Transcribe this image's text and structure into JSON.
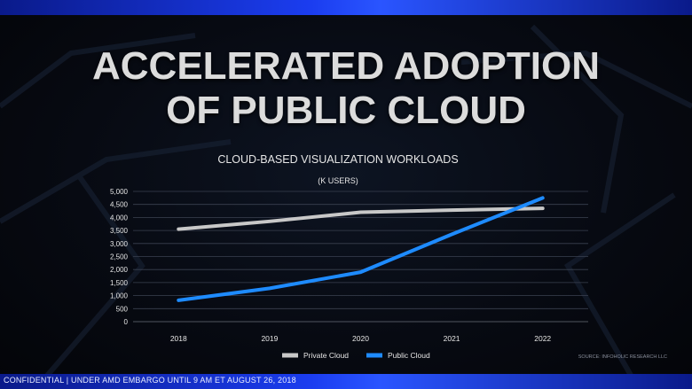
{
  "slide": {
    "title_line1": "ACCELERATED ADOPTION",
    "title_line2": "OF PUBLIC CLOUD",
    "footer": "CONFIDENTIAL | UNDER AMD EMBARGO UNTIL 9 AM ET  AUGUST 26, 2018"
  },
  "chart_data": {
    "type": "line",
    "title": "CLOUD-BASED VISUALIZATION WORKLOADS",
    "subtitle": "(K USERS)",
    "source": "SOURCE: INFOHOLIC RESEARCH LLC",
    "x": [
      "2018",
      "2019",
      "2020",
      "2021",
      "2022"
    ],
    "ylim": [
      0,
      5000
    ],
    "yticks": [
      "0",
      "500",
      "1,000",
      "1,500",
      "2,000",
      "2,500",
      "3,000",
      "3,500",
      "4,000",
      "4,500",
      "5,000"
    ],
    "ytick_values": [
      0,
      500,
      1000,
      1500,
      2000,
      2500,
      3000,
      3500,
      4000,
      4500,
      5000
    ],
    "grid": true,
    "legend_position": "bottom-center",
    "series": [
      {
        "name": "Private Cloud",
        "values": [
          3550,
          3850,
          4200,
          4280,
          4350
        ],
        "color": "#c8c8c8"
      },
      {
        "name": "Public Cloud",
        "values": [
          820,
          1280,
          1900,
          3350,
          4750
        ],
        "color": "#1e8bff"
      }
    ]
  }
}
